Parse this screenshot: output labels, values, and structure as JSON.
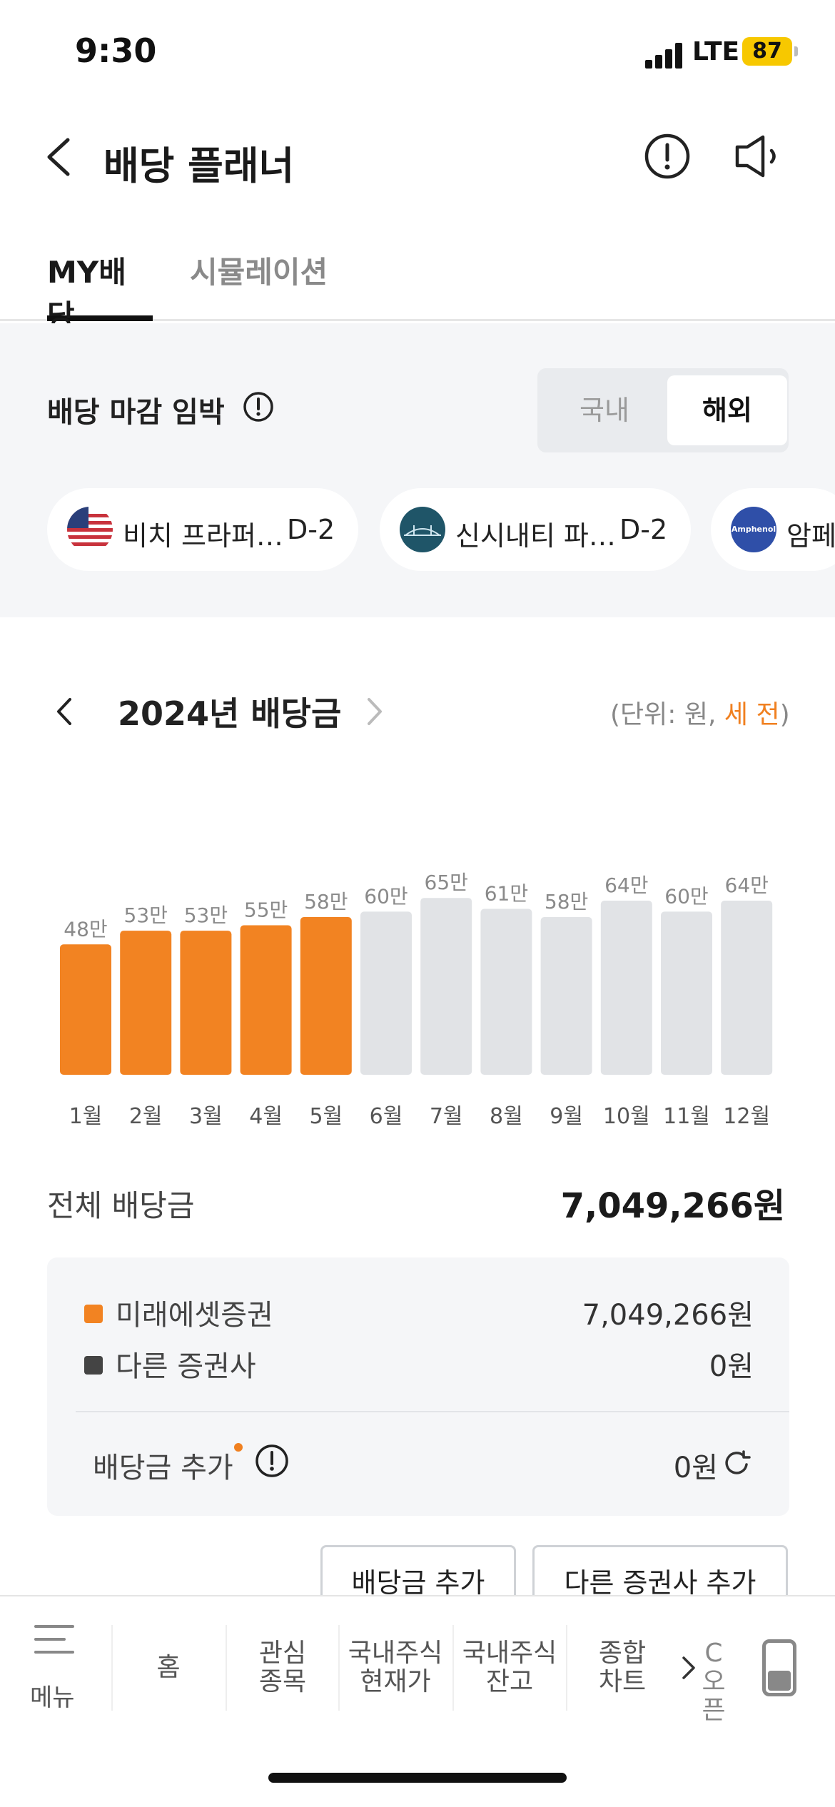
{
  "status_bar": {
    "time": "9:30",
    "network": "LTE",
    "battery": "87"
  },
  "header": {
    "title": "배당 플래너"
  },
  "tabs": [
    {
      "label": "MY배당",
      "active": true
    },
    {
      "label": "시뮬레이션",
      "active": false
    }
  ],
  "deadline": {
    "title": "배당 마감 임박",
    "segment": {
      "domestic": "국내",
      "overseas": "해외",
      "selected": "해외"
    },
    "stocks": [
      {
        "name": "비치 프라퍼…",
        "dday": "D-2",
        "logo": "us-flag-icon"
      },
      {
        "name": "신시내티 파…",
        "dday": "D-2",
        "logo": "bridge-logo-icon"
      },
      {
        "name": "암페",
        "dday": "",
        "logo": "amphenol-logo-icon",
        "logo_text": "Amphenol"
      }
    ]
  },
  "dividend": {
    "year_title": "2024년 배당금",
    "unit_prefix": "(단위: 원, ",
    "unit_tax": "세 전",
    "unit_suffix": ")",
    "total_label": "전체 배당금",
    "total_value": "7,049,266원",
    "breakdown": [
      {
        "label": "미래에셋증권",
        "value": "7,049,266원",
        "color": "#f28322"
      },
      {
        "label": "다른 증권사",
        "value": "0원",
        "color": "#444444"
      }
    ],
    "add_label": "배당금 추가",
    "add_value": "0원",
    "buttons": {
      "add_dividend": "배당금 추가",
      "add_broker": "다른 증권사 추가"
    }
  },
  "chart_data": {
    "type": "bar",
    "categories": [
      "1월",
      "2월",
      "3월",
      "4월",
      "5월",
      "6월",
      "7월",
      "8월",
      "9월",
      "10월",
      "11월",
      "12월"
    ],
    "values": [
      48,
      53,
      53,
      55,
      58,
      60,
      65,
      61,
      58,
      64,
      60,
      64
    ],
    "value_labels": [
      "48만",
      "53만",
      "53만",
      "55만",
      "58만",
      "60만",
      "65만",
      "61만",
      "58만",
      "64만",
      "60만",
      "64만"
    ],
    "status": [
      "paid",
      "paid",
      "paid",
      "paid",
      "paid",
      "expected",
      "expected",
      "expected",
      "expected",
      "expected",
      "expected",
      "expected"
    ],
    "unit": "만원",
    "colors": {
      "paid": "#f28322",
      "expected": "#e1e3e6"
    },
    "title": "",
    "xlabel": "",
    "ylabel": "",
    "grid": false
  },
  "bottom_nav": {
    "menu": "메뉴",
    "items": [
      {
        "line1": "홈",
        "line2": ""
      },
      {
        "line1": "관심",
        "line2": "종목"
      },
      {
        "line1": "국내주식",
        "line2": "현재가"
      },
      {
        "line1": "국내주식",
        "line2": "잔고"
      },
      {
        "line1": "종합",
        "line2": "차트"
      },
      {
        "line1": "C",
        "line2": "오픈"
      }
    ]
  }
}
